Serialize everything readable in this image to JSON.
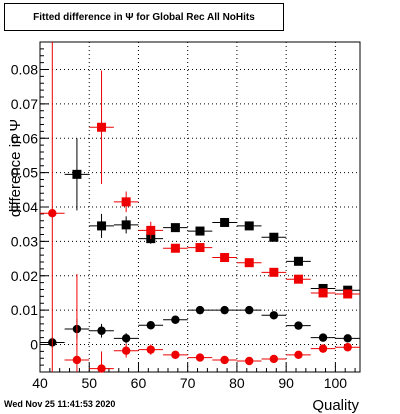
{
  "header": {
    "title": "Fitted difference in  Ψ  for Global Rec All NoHits",
    "timestamp": "Wed Nov 25 11:41:53 2020"
  },
  "chart_data": {
    "type": "scatter",
    "title": "Fitted difference in  Ψ  for Global Rec All NoHits",
    "xlabel": "Quality",
    "ylabel": "difference in  Ψ",
    "xlim": [
      40,
      105
    ],
    "ylim": [
      -0.008,
      0.088
    ],
    "xticks": [
      "40",
      "50",
      "60",
      "70",
      "80",
      "90",
      "100"
    ],
    "yticks": [
      "0",
      "0.01",
      "0.02",
      "0.03",
      "0.04",
      "0.05",
      "0.06",
      "0.07",
      "0.08"
    ],
    "grid": true,
    "x_bin_halfwidth": 2.5,
    "series": [
      {
        "marker": "square",
        "color": "#000000",
        "x": [
          42.5,
          47.5,
          52.5,
          57.5,
          62.5,
          67.5,
          72.5,
          77.5,
          82.5,
          87.5,
          92.5,
          97.5,
          102.5
        ],
        "y": [
          null,
          0.0495,
          0.0345,
          0.0348,
          0.0308,
          0.034,
          0.033,
          0.0355,
          0.0345,
          0.0312,
          0.0242,
          0.0163,
          0.0158
        ],
        "yerr": [
          null,
          0.0105,
          0.0035,
          0.0025,
          0.0015,
          0.0012,
          0.001,
          0.001,
          0.001,
          0.001,
          0.001,
          0.001,
          0.0012
        ]
      },
      {
        "marker": "square",
        "color": "#ee0000",
        "x": [
          42.5,
          47.5,
          52.5,
          57.5,
          62.5,
          67.5,
          72.5,
          77.5,
          82.5,
          87.5,
          92.5,
          97.5,
          102.5
        ],
        "y": [
          null,
          null,
          0.0632,
          0.0415,
          0.0332,
          0.028,
          0.0282,
          0.0253,
          0.0238,
          0.021,
          0.019,
          0.015,
          0.0147
        ],
        "yerr": [
          null,
          null,
          0.0165,
          0.003,
          0.0025,
          0.0012,
          0.001,
          0.001,
          0.001,
          0.001,
          0.001,
          0.001,
          0.001
        ]
      },
      {
        "marker": "circle",
        "color": "#000000",
        "x": [
          42.5,
          47.5,
          52.5,
          57.5,
          62.5,
          67.5,
          72.5,
          77.5,
          82.5,
          87.5,
          92.5,
          97.5,
          102.5
        ],
        "y": [
          0.0006,
          0.0045,
          0.004,
          0.0018,
          0.0056,
          0.0072,
          0.01,
          0.01,
          0.01,
          0.0085,
          0.0055,
          0.002,
          0.0018
        ],
        "yerr": [
          0.0015,
          0.003,
          0.002,
          0.0015,
          0.001,
          0.0008,
          0.0008,
          0.0008,
          0.0008,
          0.0008,
          0.0008,
          0.0008,
          0.0008
        ]
      },
      {
        "marker": "circle",
        "color": "#ee0000",
        "x": [
          42.5,
          47.5,
          52.5,
          57.5,
          62.5,
          67.5,
          72.5,
          77.5,
          82.5,
          87.5,
          92.5,
          97.5,
          102.5
        ],
        "y": [
          0.0382,
          -0.0045,
          -0.007,
          -0.0018,
          -0.0015,
          -0.003,
          -0.0038,
          -0.0045,
          -0.0048,
          -0.0042,
          -0.003,
          -0.0012,
          -0.0008
        ],
        "yerr": [
          0.052,
          0.025,
          0.005,
          0.002,
          0.0015,
          0.0008,
          0.0008,
          0.0008,
          0.0008,
          0.0008,
          0.0008,
          0.0008,
          0.0008
        ]
      }
    ]
  }
}
